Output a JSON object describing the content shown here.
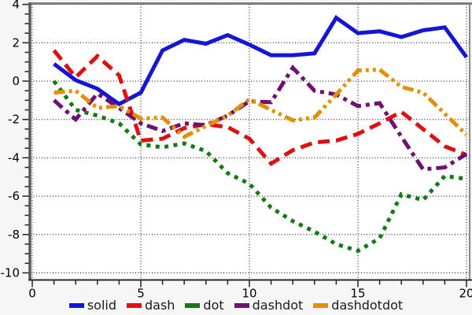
{
  "chart_data": {
    "type": "line",
    "title": "",
    "xlabel": "",
    "ylabel": "",
    "xlim": [
      0,
      20
    ],
    "ylim": [
      -10,
      4
    ],
    "grid": "dotted",
    "legend_position": "bottom",
    "x_ticks_major": [
      0,
      5,
      10,
      15,
      20
    ],
    "x_minor_step": 1,
    "y_ticks_major": [
      4,
      2,
      0,
      -2,
      -4,
      -6,
      -8,
      -10
    ],
    "y_minor_step": 0.5,
    "x_tick_labels": [
      "0",
      "5",
      "10",
      "15",
      "20"
    ],
    "y_tick_labels": [
      "4",
      "2",
      "0",
      "-2",
      "-4",
      "-6",
      "-8",
      "-10"
    ],
    "x": [
      1,
      2,
      3,
      4,
      5,
      6,
      7,
      8,
      9,
      10,
      11,
      12,
      13,
      14,
      15,
      16,
      17,
      18,
      19,
      20
    ],
    "series": [
      {
        "name": "solid",
        "color": "#1515d6",
        "style": "solid",
        "values": [
          0.9,
          0.05,
          -0.4,
          -1.2,
          -0.6,
          1.6,
          2.15,
          1.95,
          2.4,
          1.9,
          1.35,
          1.35,
          1.45,
          3.3,
          2.5,
          2.6,
          2.3,
          2.65,
          2.8,
          1.25
        ]
      },
      {
        "name": "dash",
        "color": "#dd1111",
        "style": "dash",
        "values": [
          1.6,
          0.2,
          1.3,
          0.3,
          -3.1,
          -3.0,
          -2.45,
          -2.25,
          -2.4,
          -3.0,
          -4.3,
          -3.6,
          -3.2,
          -3.1,
          -2.75,
          -2.2,
          -1.6,
          -2.5,
          -3.4,
          -3.85
        ]
      },
      {
        "name": "dot",
        "color": "#117a11",
        "style": "dot",
        "values": [
          0.0,
          -1.5,
          -1.8,
          -2.2,
          -3.3,
          -3.45,
          -3.25,
          -3.65,
          -4.8,
          -5.35,
          -6.6,
          -7.3,
          -7.85,
          -8.5,
          -8.85,
          -8.2,
          -5.9,
          -6.2,
          -4.95,
          -5.1
        ]
      },
      {
        "name": "dashdot",
        "color": "#701070",
        "style": "dashdot",
        "values": [
          -1.0,
          -2.0,
          -0.65,
          -1.4,
          -2.2,
          -2.6,
          -2.2,
          -2.3,
          -1.8,
          -1.05,
          -1.1,
          0.7,
          -0.5,
          -0.7,
          -1.3,
          -1.15,
          -2.9,
          -4.6,
          -4.5,
          -3.8
        ]
      },
      {
        "name": "dashdotdot",
        "color": "#e39000",
        "style": "dashdotdot",
        "values": [
          -0.6,
          -0.5,
          -1.4,
          -1.3,
          -1.95,
          -1.9,
          -2.9,
          -2.35,
          -1.8,
          -0.95,
          -1.5,
          -2.05,
          -1.9,
          -0.7,
          0.55,
          0.6,
          -0.3,
          -0.6,
          -1.7,
          -2.8
        ]
      }
    ]
  },
  "legend": {
    "items": [
      {
        "label": "solid"
      },
      {
        "label": "dash"
      },
      {
        "label": "dot"
      },
      {
        "label": "dashdot"
      },
      {
        "label": "dashdotdot"
      }
    ]
  }
}
